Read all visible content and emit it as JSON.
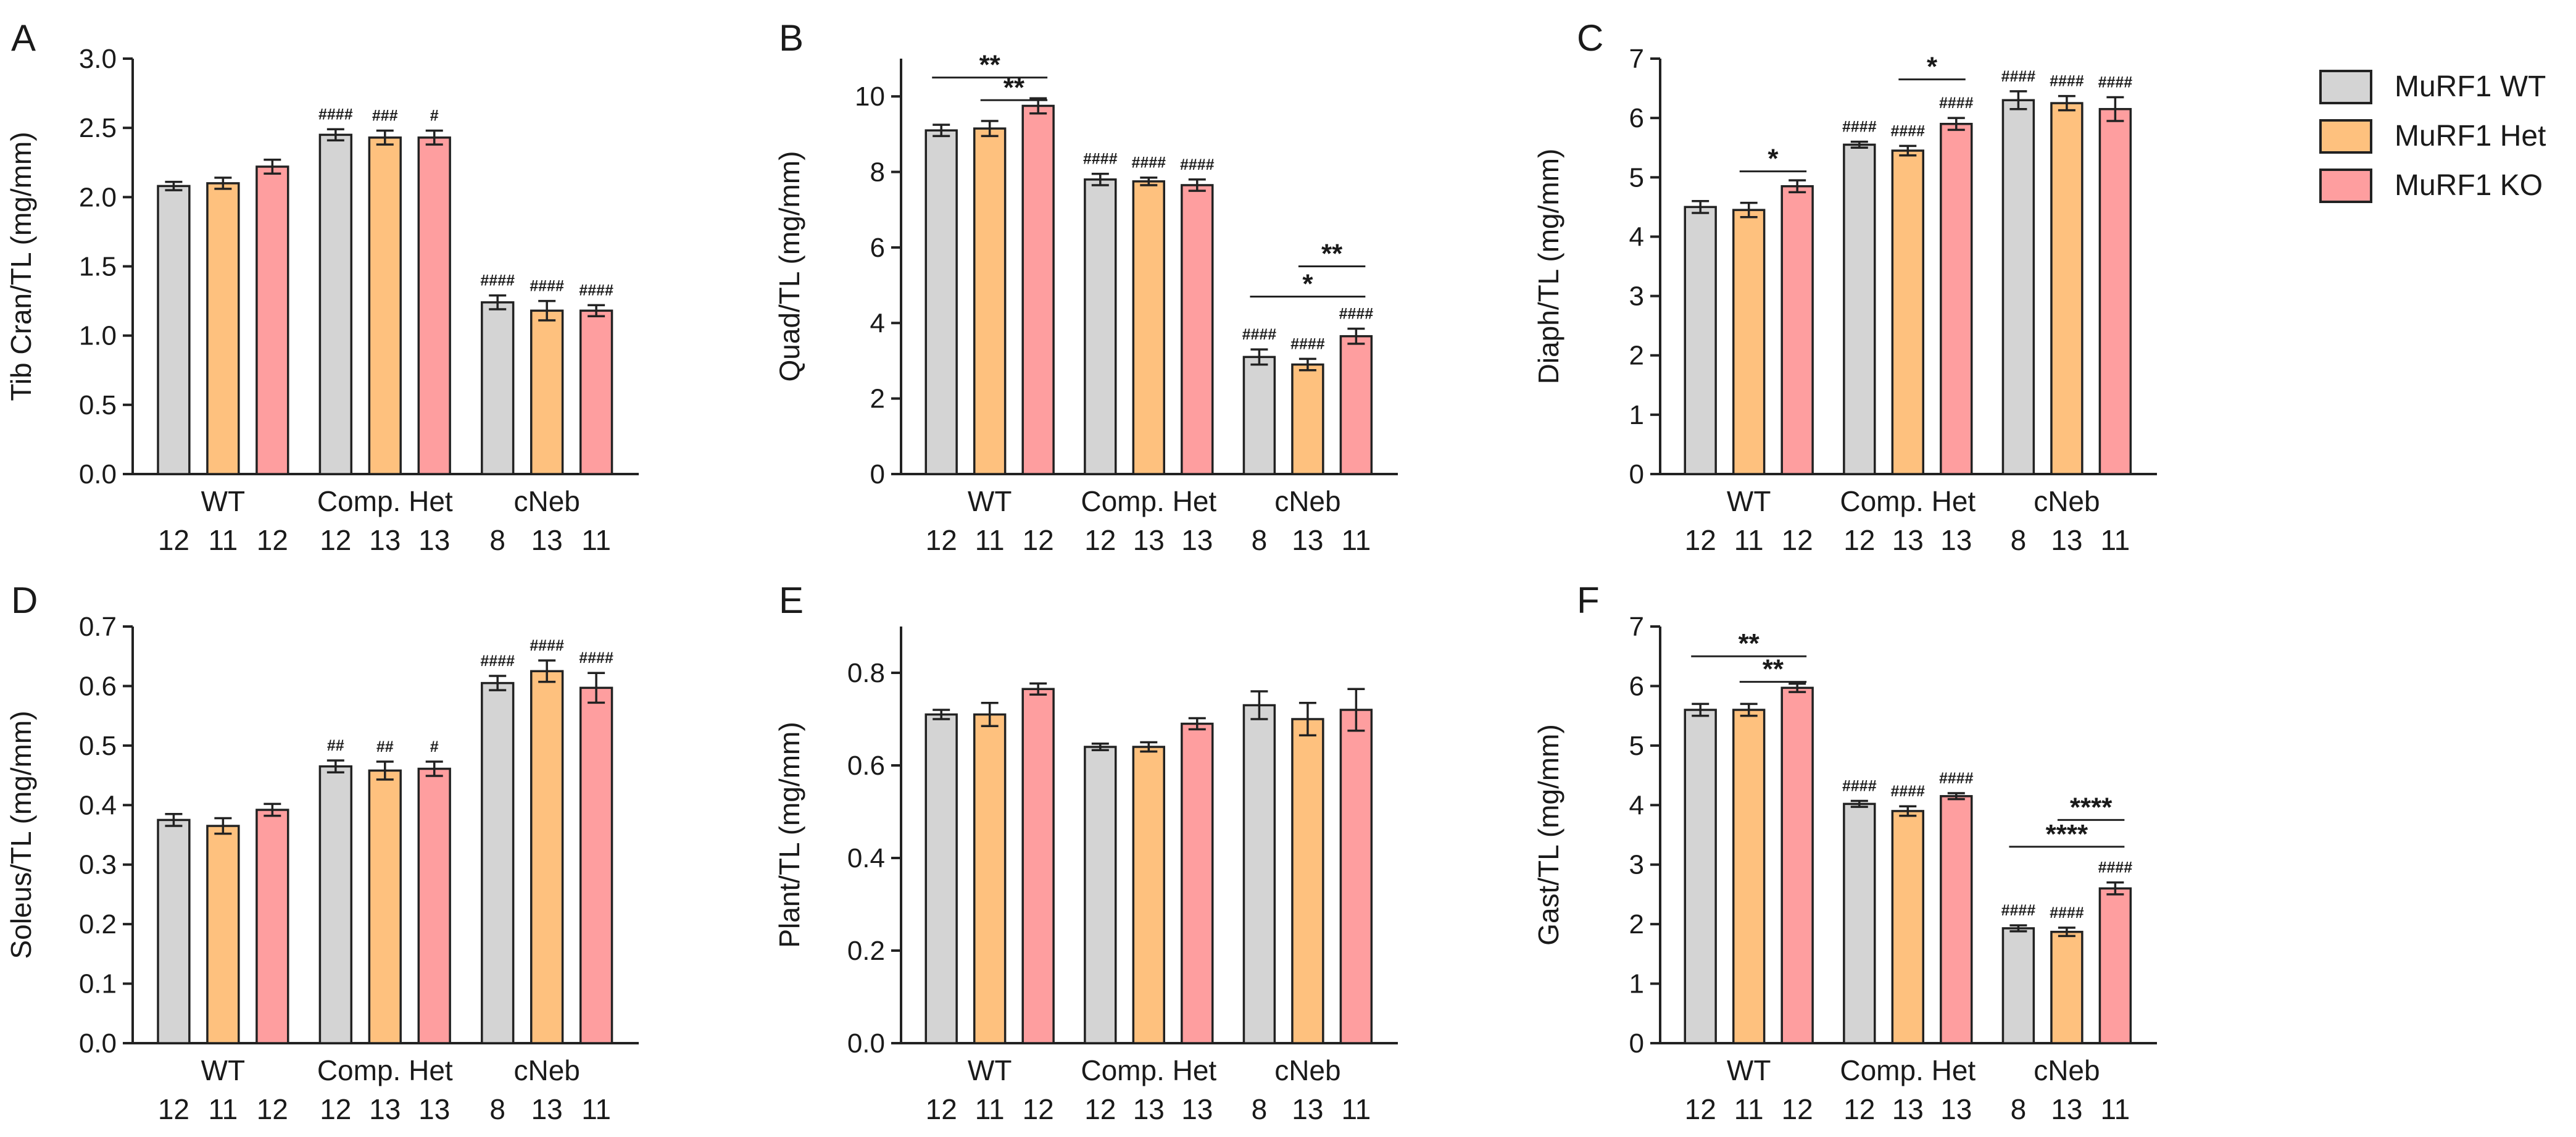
{
  "legend": {
    "entries": [
      {
        "label": "MuRF1 WT",
        "color": "#d4d4d4"
      },
      {
        "label": "MuRF1 Het",
        "color": "#fec17e"
      },
      {
        "label": "MuRF1 KO",
        "color": "#fe9e9f"
      }
    ]
  },
  "chart_data": [
    {
      "panel": "A",
      "type": "bar",
      "ylabel": "Tib Cran/TL (mg/mm)",
      "ylim": [
        0,
        3.0
      ],
      "yticks": [
        0,
        0.5,
        1.0,
        1.5,
        2.0,
        2.5,
        3.0
      ],
      "ytick_labels": [
        "0.0",
        "0.5",
        "1.0",
        "1.5",
        "2.0",
        "2.5",
        "3.0"
      ],
      "categories": [
        "WT",
        "Comp. Het",
        "cNeb"
      ],
      "series": [
        {
          "name": "MuRF1 WT",
          "values": [
            2.08,
            2.45,
            1.24
          ],
          "errors": [
            0.03,
            0.04,
            0.05
          ],
          "n": [
            "12",
            "12",
            "8"
          ],
          "marks": [
            "",
            "####",
            "####"
          ]
        },
        {
          "name": "MuRF1 Het",
          "values": [
            2.1,
            2.43,
            1.18
          ],
          "errors": [
            0.04,
            0.05,
            0.07
          ],
          "n": [
            "11",
            "13",
            "13"
          ],
          "marks": [
            "",
            "###",
            "####"
          ]
        },
        {
          "name": "MuRF1 KO",
          "values": [
            2.22,
            2.43,
            1.18
          ],
          "errors": [
            0.05,
            0.05,
            0.04
          ],
          "n": [
            "12",
            "13",
            "11"
          ],
          "marks": [
            "",
            "#",
            "####"
          ]
        }
      ],
      "significance": []
    },
    {
      "panel": "B",
      "type": "bar",
      "ylabel": "Quad/TL (mg/mm)",
      "ylim": [
        0,
        11
      ],
      "yticks": [
        0,
        2,
        4,
        6,
        8,
        10
      ],
      "ytick_labels": [
        "0",
        "2",
        "4",
        "6",
        "8",
        "10"
      ],
      "categories": [
        "WT",
        "Comp. Het",
        "cNeb"
      ],
      "series": [
        {
          "name": "MuRF1 WT",
          "values": [
            9.1,
            7.8,
            3.1
          ],
          "errors": [
            0.15,
            0.15,
            0.2
          ],
          "n": [
            "12",
            "12",
            "8"
          ],
          "marks": [
            "",
            "####",
            "####"
          ]
        },
        {
          "name": "MuRF1 Het",
          "values": [
            9.15,
            7.75,
            2.9
          ],
          "errors": [
            0.2,
            0.1,
            0.15
          ],
          "n": [
            "11",
            "13",
            "13"
          ],
          "marks": [
            "",
            "####",
            "####"
          ]
        },
        {
          "name": "MuRF1 KO",
          "values": [
            9.75,
            7.65,
            3.65
          ],
          "errors": [
            0.2,
            0.15,
            0.2
          ],
          "n": [
            "12",
            "13",
            "11"
          ],
          "marks": [
            "",
            "####",
            "####"
          ]
        }
      ],
      "significance": [
        {
          "group": 0,
          "from": 0,
          "to": 2,
          "level": 10.5,
          "label": "**"
        },
        {
          "group": 0,
          "from": 1,
          "to": 2,
          "level": 9.9,
          "label": "**"
        },
        {
          "group": 2,
          "from": 0,
          "to": 2,
          "level": 4.7,
          "label": "*"
        },
        {
          "group": 2,
          "from": 1,
          "to": 2,
          "level": 5.5,
          "label": "**"
        }
      ]
    },
    {
      "panel": "C",
      "type": "bar",
      "ylabel": "Diaph/TL (mg/mm)",
      "ylim": [
        0,
        7
      ],
      "yticks": [
        0,
        1,
        2,
        3,
        4,
        5,
        6,
        7
      ],
      "ytick_labels": [
        "0",
        "1",
        "2",
        "3",
        "4",
        "5",
        "6",
        "7"
      ],
      "categories": [
        "WT",
        "Comp. Het",
        "cNeb"
      ],
      "series": [
        {
          "name": "MuRF1 WT",
          "values": [
            4.5,
            5.55,
            6.3
          ],
          "errors": [
            0.1,
            0.05,
            0.15
          ],
          "n": [
            "12",
            "12",
            "8"
          ],
          "marks": [
            "",
            "####",
            "####"
          ]
        },
        {
          "name": "MuRF1 Het",
          "values": [
            4.45,
            5.45,
            6.25
          ],
          "errors": [
            0.12,
            0.08,
            0.12
          ],
          "n": [
            "11",
            "13",
            "13"
          ],
          "marks": [
            "",
            "####",
            "####"
          ]
        },
        {
          "name": "MuRF1 KO",
          "values": [
            4.85,
            5.9,
            6.15
          ],
          "errors": [
            0.1,
            0.1,
            0.2
          ],
          "n": [
            "12",
            "13",
            "11"
          ],
          "marks": [
            "",
            "####",
            "####"
          ]
        }
      ],
      "significance": [
        {
          "group": 0,
          "from": 1,
          "to": 2,
          "level": 5.1,
          "label": "*"
        },
        {
          "group": 1,
          "from": 1,
          "to": 2,
          "level": 6.65,
          "label": "*"
        }
      ]
    },
    {
      "panel": "D",
      "type": "bar",
      "ylabel": "Soleus/TL (mg/mm)",
      "ylim": [
        0,
        0.7
      ],
      "yticks": [
        0,
        0.1,
        0.2,
        0.3,
        0.4,
        0.5,
        0.6,
        0.7
      ],
      "ytick_labels": [
        "0.0",
        "0.1",
        "0.2",
        "0.3",
        "0.4",
        "0.5",
        "0.6",
        "0.7"
      ],
      "categories": [
        "WT",
        "Comp. Het",
        "cNeb"
      ],
      "series": [
        {
          "name": "MuRF1 WT",
          "values": [
            0.375,
            0.465,
            0.605
          ],
          "errors": [
            0.01,
            0.01,
            0.012
          ],
          "n": [
            "12",
            "12",
            "8"
          ],
          "marks": [
            "",
            "##",
            "####"
          ]
        },
        {
          "name": "MuRF1 Het",
          "values": [
            0.365,
            0.458,
            0.625
          ],
          "errors": [
            0.013,
            0.015,
            0.018
          ],
          "n": [
            "11",
            "13",
            "13"
          ],
          "marks": [
            "",
            "##",
            "####"
          ]
        },
        {
          "name": "MuRF1 KO",
          "values": [
            0.392,
            0.461,
            0.597
          ],
          "errors": [
            0.01,
            0.012,
            0.025
          ],
          "n": [
            "12",
            "13",
            "11"
          ],
          "marks": [
            "",
            "#",
            "####"
          ]
        }
      ],
      "significance": []
    },
    {
      "panel": "E",
      "type": "bar",
      "ylabel": "Plant/TL (mg/mm)",
      "ylim": [
        0,
        0.9
      ],
      "yticks": [
        0,
        0.2,
        0.4,
        0.6,
        0.8
      ],
      "ytick_labels": [
        "0.0",
        "0.2",
        "0.4",
        "0.6",
        "0.8"
      ],
      "categories": [
        "WT",
        "Comp. Het",
        "cNeb"
      ],
      "series": [
        {
          "name": "MuRF1 WT",
          "values": [
            0.71,
            0.64,
            0.73
          ],
          "errors": [
            0.01,
            0.007,
            0.03
          ],
          "n": [
            "12",
            "12",
            "8"
          ],
          "marks": [
            "",
            "",
            ""
          ]
        },
        {
          "name": "MuRF1 Het",
          "values": [
            0.71,
            0.64,
            0.7
          ],
          "errors": [
            0.025,
            0.01,
            0.035
          ],
          "n": [
            "11",
            "13",
            "13"
          ],
          "marks": [
            "",
            "",
            ""
          ]
        },
        {
          "name": "MuRF1 KO",
          "values": [
            0.765,
            0.69,
            0.72
          ],
          "errors": [
            0.012,
            0.012,
            0.045
          ],
          "n": [
            "12",
            "13",
            "11"
          ],
          "marks": [
            "",
            "",
            ""
          ]
        }
      ],
      "significance": []
    },
    {
      "panel": "F",
      "type": "bar",
      "ylabel": "Gast/TL (mg/mm)",
      "ylim": [
        0,
        7
      ],
      "yticks": [
        0,
        1,
        2,
        3,
        4,
        5,
        6,
        7
      ],
      "ytick_labels": [
        "0",
        "1",
        "2",
        "3",
        "4",
        "5",
        "6",
        "7"
      ],
      "categories": [
        "WT",
        "Comp. Het",
        "cNeb"
      ],
      "series": [
        {
          "name": "MuRF1 WT",
          "values": [
            5.6,
            4.02,
            1.93
          ],
          "errors": [
            0.1,
            0.05,
            0.05
          ],
          "n": [
            "12",
            "12",
            "8"
          ],
          "marks": [
            "",
            "####",
            "####"
          ]
        },
        {
          "name": "MuRF1 Het",
          "values": [
            5.6,
            3.9,
            1.87
          ],
          "errors": [
            0.1,
            0.08,
            0.07
          ],
          "n": [
            "11",
            "13",
            "13"
          ],
          "marks": [
            "",
            "####",
            "####"
          ]
        },
        {
          "name": "MuRF1 KO",
          "values": [
            5.97,
            4.15,
            2.6
          ],
          "errors": [
            0.07,
            0.05,
            0.1
          ],
          "n": [
            "12",
            "13",
            "11"
          ],
          "marks": [
            "",
            "####",
            "####"
          ]
        }
      ],
      "significance": [
        {
          "group": 0,
          "from": 0,
          "to": 2,
          "level": 6.5,
          "label": "**"
        },
        {
          "group": 0,
          "from": 1,
          "to": 2,
          "level": 6.07,
          "label": "**"
        },
        {
          "group": 2,
          "from": 0,
          "to": 2,
          "level": 3.3,
          "label": "****"
        },
        {
          "group": 2,
          "from": 1,
          "to": 2,
          "level": 3.75,
          "label": "****"
        }
      ]
    }
  ]
}
